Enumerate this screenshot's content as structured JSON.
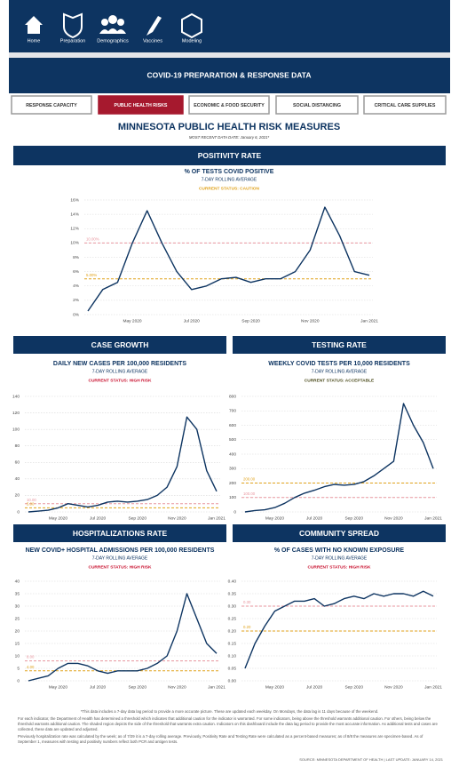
{
  "nav": [
    "Home",
    "Preparation",
    "Demographics",
    "Vaccines",
    "Modeling"
  ],
  "banner": "COVID-19 PREPARATION & RESPONSE DATA",
  "tabs": [
    "RESPONSE CAPACITY",
    "PUBLIC HEALTH RISKS",
    "ECONOMIC & FOOD SECURITY",
    "SOCIAL DISTANCING",
    "CRITICAL CARE SUPPLIES"
  ],
  "header": {
    "title": "MINNESOTA PUBLIC HEALTH RISK MEASURES",
    "date": "MOST RECENT DATA DATE: January 6, 2021*"
  },
  "footnotes": [
    "*This data includes a 7-day data lag period to provide a more accurate picture. These are updated each weekday. On Mondays, the data lag is 11 days because of the weekend.",
    "For each indicator, the Department of Health has determined a threshold which indicates that additional caution for the indicator is warranted. For some indicators, being above the threshold warrants additional caution. For others, being below the threshold warrants additional caution. The shaded region depicts the side of the threshold that warrants extra caution. Indicators on this dashboard include the data lag period to provide the most accurate information. As additional tests and cases are collected, these data are updated and adjusted.",
    "Previously hospitalization rate was calculated by the week; as of 7/29 it is a 7-day rolling average. Previously, Positivity Rate and Testing Rate were calculated as a percent-based measures; as of 8/8 the measures are specimen-based. As of September 1, measures with testing and positivity numbers reflect both PCR and antigen tests."
  ],
  "source": "SOURCE: MINNESOTA DEPARTMENT OF HEALTH | LAST UPDATE: JANUARY 14, 2021",
  "chart_data": [
    {
      "type": "line",
      "section": "POSITIVITY RATE",
      "title": "% OF TESTS COVID POSITIVE",
      "subtitle": "7-DAY ROLLING AVERAGE",
      "status": "CURRENT STATUS: CAUTION",
      "status_color": "#e0a21b",
      "color": "#0d3461",
      "grid": true,
      "categories": [
        null,
        null,
        null,
        "May 2020",
        null,
        null,
        null,
        "Jul 2020",
        null,
        null,
        null,
        "Sep 2020",
        null,
        null,
        null,
        "Nov 2020",
        null,
        null,
        null,
        "Jan 2021"
      ],
      "values": [
        0.5,
        3.5,
        4.5,
        10,
        14.5,
        10,
        6,
        3.5,
        4,
        5,
        5.2,
        4.5,
        5,
        5,
        6,
        9,
        15,
        11,
        6,
        5.5
      ],
      "ylim": [
        0,
        16
      ],
      "yticks": [
        {
          "value": 0,
          "label": "0%"
        },
        {
          "value": 2,
          "label": "2%"
        },
        {
          "value": 4,
          "label": "4%"
        },
        {
          "value": 6,
          "label": "6%"
        },
        {
          "value": 8,
          "label": "8%"
        },
        {
          "value": 10,
          "label": "10%"
        },
        {
          "value": 12,
          "label": "12%"
        },
        {
          "value": 14,
          "label": "14%"
        },
        {
          "value": 16,
          "label": "16%"
        }
      ],
      "thresholds": [
        {
          "value": 10,
          "label": "10.00%",
          "color": "#e8959e"
        },
        {
          "value": 5,
          "label": "5.00%",
          "color": "#e0a21b"
        }
      ]
    },
    {
      "type": "line",
      "section": "CASE GROWTH",
      "title": "DAILY NEW CASES PER 100,000 RESIDENTS",
      "subtitle": "7-DAY ROLLING AVERAGE",
      "status": "CURRENT STATUS: HIGH RISK",
      "status_color": "#c8102e",
      "color": "#0d3461",
      "grid": true,
      "categories": [
        null,
        null,
        null,
        "May 2020",
        null,
        null,
        null,
        "Jul 2020",
        null,
        null,
        null,
        "Sep 2020",
        null,
        null,
        null,
        "Nov 2020",
        null,
        null,
        null,
        "Jan 2021"
      ],
      "values": [
        0,
        1,
        2,
        5,
        10,
        8,
        6,
        8,
        12,
        13,
        12,
        13,
        15,
        20,
        30,
        55,
        115,
        100,
        50,
        25
      ],
      "ylim": [
        0,
        140
      ],
      "yticks": [
        0,
        20,
        40,
        60,
        80,
        100,
        120,
        140
      ],
      "thresholds": [
        {
          "value": 10,
          "label": "10.00",
          "color": "#e8959e"
        },
        {
          "value": 5,
          "label": "5.00",
          "color": "#e0a21b"
        }
      ]
    },
    {
      "type": "line",
      "section": "TESTING RATE",
      "title": "WEEKLY COVID TESTS PER 10,000 RESIDENTS",
      "subtitle": "7-DAY ROLLING AVERAGE",
      "status": "CURRENT STATUS: ACCEPTABLE",
      "status_color": "#4a4a1a",
      "color": "#0d3461",
      "grid": true,
      "categories": [
        null,
        null,
        null,
        "May 2020",
        null,
        null,
        null,
        "Jul 2020",
        null,
        null,
        null,
        "Sep 2020",
        null,
        null,
        null,
        "Nov 2020",
        null,
        null,
        null,
        "Jan 2021"
      ],
      "values": [
        0,
        10,
        15,
        30,
        60,
        100,
        130,
        150,
        175,
        190,
        185,
        190,
        210,
        250,
        300,
        350,
        750,
        600,
        480,
        300
      ],
      "ylim": [
        0,
        800
      ],
      "yticks": [
        0,
        100,
        200,
        300,
        400,
        500,
        600,
        700,
        800
      ],
      "thresholds": [
        {
          "value": 200,
          "label": "200.00",
          "color": "#e0a21b"
        },
        {
          "value": 100,
          "label": "100.00",
          "color": "#e8959e"
        }
      ]
    },
    {
      "type": "line",
      "section": "HOSPITALIZATIONS RATE",
      "title": "NEW COVID+ HOSPITAL ADMISSIONS PER 100,000 RESIDENTS",
      "subtitle": "7-DAY ROLLING AVERAGE",
      "status": "CURRENT STATUS: HIGH RISK",
      "status_color": "#c8102e",
      "color": "#0d3461",
      "grid": true,
      "categories": [
        null,
        null,
        null,
        "May 2020",
        null,
        null,
        null,
        "Jul 2020",
        null,
        null,
        null,
        "Sep 2020",
        null,
        null,
        null,
        "Nov 2020",
        null,
        null,
        null,
        "Jan 2021"
      ],
      "values": [
        0,
        1,
        2,
        5,
        7,
        7,
        6,
        4,
        3,
        4,
        4,
        4,
        5,
        7,
        10,
        20,
        35,
        25,
        15,
        11
      ],
      "ylim": [
        0,
        40
      ],
      "yticks": [
        0,
        5,
        10,
        15,
        20,
        25,
        30,
        35,
        40
      ],
      "thresholds": [
        {
          "value": 8,
          "label": "8.00",
          "color": "#e8959e"
        },
        {
          "value": 4,
          "label": "4.00",
          "color": "#e0a21b"
        }
      ]
    },
    {
      "type": "line",
      "section": "COMMUNITY SPREAD",
      "title": "% OF CASES WITH NO KNOWN EXPOSURE",
      "subtitle": "7-DAY ROLLING AVERAGE",
      "status": "CURRENT STATUS: HIGH RISK",
      "status_color": "#c8102e",
      "color": "#0d3461",
      "grid": true,
      "categories": [
        null,
        null,
        null,
        "May 2020",
        null,
        null,
        null,
        "Jul 2020",
        null,
        null,
        null,
        "Sep 2020",
        null,
        null,
        null,
        "Nov 2020",
        null,
        null,
        null,
        "Jan 2021"
      ],
      "values": [
        0.05,
        0.15,
        0.22,
        0.28,
        0.3,
        0.32,
        0.32,
        0.33,
        0.3,
        0.31,
        0.33,
        0.34,
        0.33,
        0.35,
        0.34,
        0.35,
        0.35,
        0.34,
        0.36,
        0.34
      ],
      "ylim": [
        0,
        0.4
      ],
      "yticks": [
        {
          "value": 0,
          "label": "0.00"
        },
        {
          "value": 0.05,
          "label": "0.05"
        },
        {
          "value": 0.1,
          "label": "0.10"
        },
        {
          "value": 0.15,
          "label": "0.15"
        },
        {
          "value": 0.2,
          "label": "0.20"
        },
        {
          "value": 0.25,
          "label": "0.25"
        },
        {
          "value": 0.3,
          "label": "0.30"
        },
        {
          "value": 0.35,
          "label": "0.35"
        },
        {
          "value": 0.4,
          "label": "0.40"
        }
      ],
      "thresholds": [
        {
          "value": 0.3,
          "label": "0.30",
          "color": "#e8959e"
        },
        {
          "value": 0.2,
          "label": "0.20",
          "color": "#e0a21b"
        }
      ]
    }
  ]
}
